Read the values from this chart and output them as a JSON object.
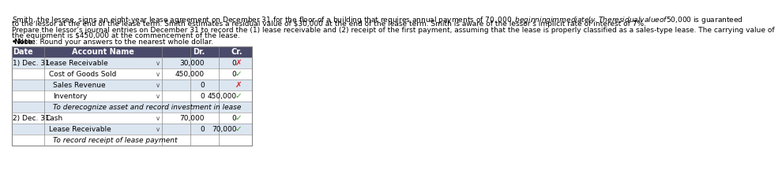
{
  "title_text": "Smith, the lessee, signs an eight-year lease agreement on December 31 for the floor of a building that requires annual payments of $70,000, beginning immediately. The residual value of $50,000 is guaranteed",
  "title_line2": "to the lessor at the end of the lease term. Smith estimates a residual value of $30,000 at the end of the lease term. Smith is aware of the lessor’s implicit rate of interest of 7%.",
  "title_line3": "Prepare the lessor’s journal entries on December 31 to record the (1) lease receivable and (2) receipt of the first payment, assuming that the lease is properly classified as a sales-type lease. The carrying value of",
  "title_line4": "the equipment is $450,000 at the commencement of the lease.",
  "note": "• Note: Round your answers to the nearest whole dollar.",
  "header_bg": "#4a4a6a",
  "header_fg": "#ffffff",
  "row_bg_light": "#dce6f1",
  "row_bg_white": "#ffffff",
  "table_border": "#aaaaaa",
  "col_headers": [
    "Date",
    "Account Name",
    "",
    "Dr.",
    "Cr."
  ],
  "rows": [
    {
      "date": "1) Dec. 31",
      "account": "Lease Receivable",
      "indent": 0,
      "dr": "30,000",
      "cr": "0",
      "dr_mark": "",
      "cr_mark": "x_red",
      "has_dropdown": true,
      "bg": "light"
    },
    {
      "date": "",
      "account": "Cost of Goods Sold",
      "indent": 1,
      "dr": "450,000",
      "cr": "0",
      "dr_mark": "",
      "cr_mark": "check_green",
      "has_dropdown": true,
      "bg": "white"
    },
    {
      "date": "",
      "account": "Sales Revenue",
      "indent": 2,
      "dr": "0",
      "cr": "",
      "dr_mark": "",
      "cr_mark": "x_red",
      "has_dropdown": true,
      "bg": "light"
    },
    {
      "date": "",
      "account": "Inventory",
      "indent": 2,
      "dr": "0",
      "cr": "450,000",
      "dr_mark": "",
      "cr_mark": "check_green",
      "has_dropdown": true,
      "bg": "white"
    },
    {
      "date": "",
      "account": "To derecognize asset and record investment in lease",
      "indent": 2,
      "dr": "",
      "cr": "",
      "dr_mark": "",
      "cr_mark": "",
      "has_dropdown": false,
      "bg": "light",
      "italic": true
    },
    {
      "date": "2) Dec. 31",
      "account": "Cash",
      "indent": 0,
      "dr": "70,000",
      "cr": "0",
      "dr_mark": "",
      "cr_mark": "check_green",
      "has_dropdown": true,
      "bg": "white"
    },
    {
      "date": "",
      "account": "Lease Receivable",
      "indent": 1,
      "dr": "0",
      "cr": "70,000",
      "dr_mark": "",
      "cr_mark": "check_green",
      "has_dropdown": true,
      "bg": "light"
    },
    {
      "date": "",
      "account": "To record receipt of lease payment",
      "indent": 2,
      "dr": "",
      "cr": "",
      "dr_mark": "",
      "cr_mark": "",
      "has_dropdown": false,
      "bg": "white",
      "italic": true
    }
  ],
  "font_size_text": 6.5,
  "font_size_table": 6.5,
  "font_size_header": 7.0
}
